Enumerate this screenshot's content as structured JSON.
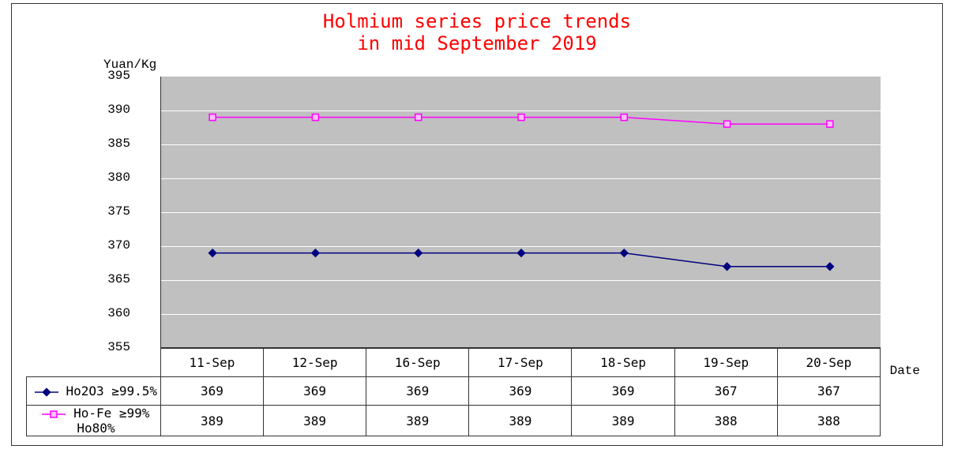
{
  "chart": {
    "type": "line",
    "title_line1": "Holmium series price trends",
    "title_line2": "in mid September 2019",
    "title_color": "#ff0000",
    "title_fontsize": 24,
    "yaxis_label": "Yuan/Kg",
    "xaxis_label": "Date",
    "label_fontsize": 16,
    "plot_background": "#c0c0c0",
    "grid_color": "#ffffff",
    "text_color": "#000000",
    "ylim": [
      355,
      395
    ],
    "ytick_step": 5,
    "yticks": [
      "395",
      "390",
      "385",
      "380",
      "375",
      "370",
      "365",
      "360",
      "355"
    ],
    "categories": [
      "11-Sep",
      "12-Sep",
      "16-Sep",
      "17-Sep",
      "18-Sep",
      "19-Sep",
      "20-Sep"
    ],
    "series": [
      {
        "name": "Ho2O3 ≥99.5%",
        "data": [
          369,
          369,
          369,
          369,
          369,
          367,
          367
        ],
        "color": "#000080",
        "marker": "diamond"
      },
      {
        "name": "Ho-Fe ≥99% Ho80%",
        "data": [
          389,
          389,
          389,
          389,
          389,
          388,
          388
        ],
        "color": "#ff00ff",
        "marker": "square"
      }
    ]
  }
}
